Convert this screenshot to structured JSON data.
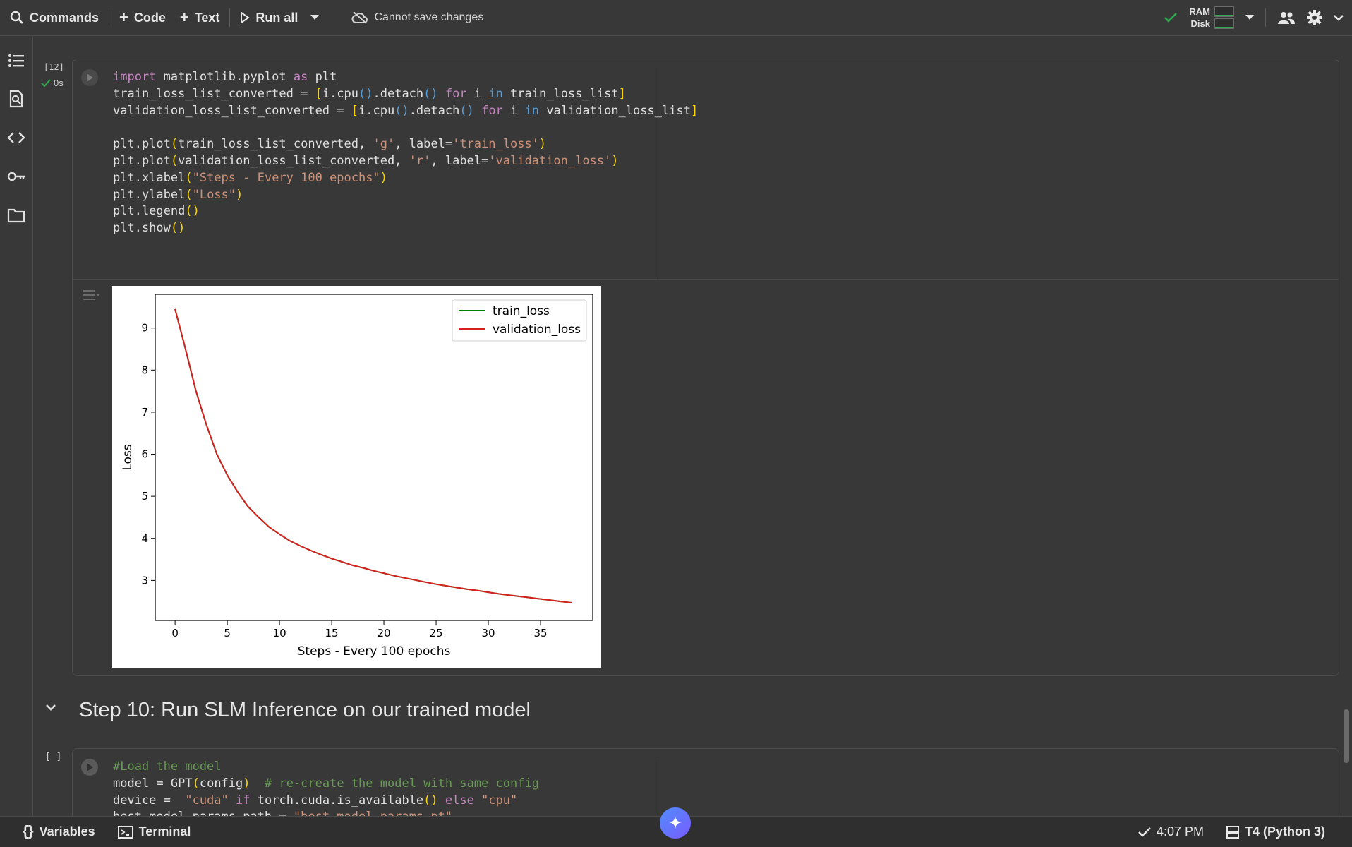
{
  "toolbar": {
    "commands": "Commands",
    "code": "Code",
    "text": "Text",
    "run_all": "Run all",
    "save_status": "Cannot save changes",
    "ram_label": "RAM",
    "disk_label": "Disk"
  },
  "cell1": {
    "exec_count": "[12]",
    "exec_time": "0s",
    "code_lines": [
      "import matplotlib.pyplot as plt",
      "train_loss_list_converted = [i.cpu().detach() for i in train_loss_list]",
      "validation_loss_list_converted = [i.cpu().detach() for i in validation_loss_list]",
      "",
      "plt.plot(train_loss_list_converted, 'g', label='train_loss')",
      "plt.plot(validation_loss_list_converted, 'r', label='validation_loss')",
      "plt.xlabel(\"Steps - Every 100 epochs\")",
      "plt.ylabel(\"Loss\")",
      "plt.legend()",
      "plt.show()"
    ]
  },
  "chart_data": {
    "type": "line",
    "xlabel": "Steps - Every 100 epochs",
    "ylabel": "Loss",
    "x_ticks": [
      0,
      5,
      10,
      15,
      20,
      25,
      30,
      35
    ],
    "y_ticks": [
      3,
      4,
      5,
      6,
      7,
      8,
      9
    ],
    "xlim": [
      -1.9,
      40
    ],
    "ylim": [
      2.05,
      9.8
    ],
    "legend_position": "top-right",
    "series": [
      {
        "name": "train_loss",
        "color": "#008000",
        "x": [
          0,
          1,
          2,
          3,
          4,
          5,
          6,
          7,
          8,
          9,
          10,
          11,
          12,
          13,
          14,
          15,
          16,
          17,
          18,
          19,
          20,
          21,
          22,
          23,
          24,
          25,
          26,
          27,
          28,
          29,
          30,
          31,
          32,
          33,
          34,
          35,
          36,
          37,
          38
        ],
        "values": [
          9.45,
          8.5,
          7.5,
          6.7,
          6.0,
          5.5,
          5.1,
          4.75,
          4.5,
          4.27,
          4.1,
          3.94,
          3.82,
          3.71,
          3.61,
          3.52,
          3.44,
          3.36,
          3.3,
          3.23,
          3.17,
          3.11,
          3.06,
          3.01,
          2.96,
          2.91,
          2.87,
          2.83,
          2.79,
          2.76,
          2.72,
          2.68,
          2.65,
          2.62,
          2.59,
          2.56,
          2.53,
          2.5,
          2.47
        ]
      },
      {
        "name": "validation_loss",
        "color": "#d62020",
        "x": [
          0,
          1,
          2,
          3,
          4,
          5,
          6,
          7,
          8,
          9,
          10,
          11,
          12,
          13,
          14,
          15,
          16,
          17,
          18,
          19,
          20,
          21,
          22,
          23,
          24,
          25,
          26,
          27,
          28,
          29,
          30,
          31,
          32,
          33,
          34,
          35,
          36,
          37,
          38
        ],
        "values": [
          9.45,
          8.5,
          7.5,
          6.7,
          6.0,
          5.5,
          5.1,
          4.75,
          4.5,
          4.27,
          4.1,
          3.94,
          3.82,
          3.71,
          3.61,
          3.52,
          3.44,
          3.36,
          3.3,
          3.23,
          3.17,
          3.11,
          3.06,
          3.01,
          2.96,
          2.91,
          2.87,
          2.83,
          2.79,
          2.76,
          2.72,
          2.68,
          2.65,
          2.62,
          2.59,
          2.56,
          2.53,
          2.5,
          2.47
        ]
      }
    ]
  },
  "section": {
    "title": "Step 10: Run SLM Inference on our trained model"
  },
  "cell2": {
    "exec_count": "[ ]",
    "code_lines": [
      "#Load the model",
      "model = GPT(config)  # re-create the model with same config",
      "device =  \"cuda\" if torch.cuda.is_available() else \"cpu\"",
      "best_model_params_path = \"best_model_params.pt\""
    ]
  },
  "bottombar": {
    "variables": "Variables",
    "terminal": "Terminal",
    "time": "4:07 PM",
    "runtime": "T4 (Python 3)"
  }
}
